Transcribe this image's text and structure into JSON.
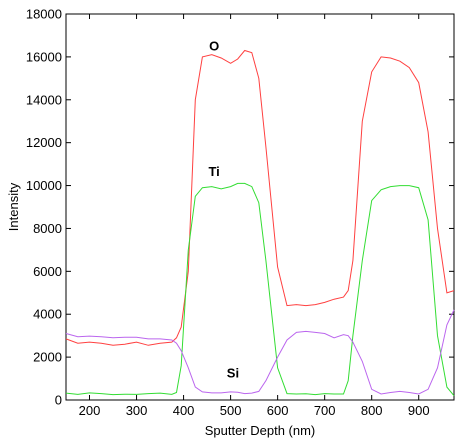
{
  "chart_data": {
    "type": "line",
    "title": "",
    "xlabel": "Sputter Depth (nm)",
    "ylabel": "Intensity",
    "xlim": [
      150,
      975
    ],
    "ylim": [
      0,
      18000
    ],
    "xticks": [
      200,
      300,
      400,
      500,
      600,
      700,
      800,
      900
    ],
    "yticks": [
      0,
      2000,
      4000,
      6000,
      8000,
      10000,
      12000,
      14000,
      16000,
      18000
    ],
    "grid": false,
    "legend": "none",
    "series": [
      {
        "name": "O",
        "color": "#ff4040",
        "label_at": [
          465,
          16300
        ],
        "x": [
          150,
          175,
          200,
          225,
          250,
          275,
          300,
          325,
          350,
          375,
          385,
          395,
          410,
          425,
          440,
          460,
          480,
          500,
          515,
          530,
          545,
          560,
          575,
          600,
          620,
          640,
          660,
          680,
          700,
          720,
          740,
          750,
          760,
          780,
          800,
          820,
          840,
          860,
          880,
          900,
          920,
          940,
          960,
          975
        ],
        "y": [
          2850,
          2650,
          2700,
          2650,
          2550,
          2600,
          2700,
          2550,
          2650,
          2700,
          2900,
          3400,
          6000,
          14000,
          16000,
          16100,
          15950,
          15700,
          15900,
          16300,
          16200,
          15000,
          11800,
          6200,
          4400,
          4450,
          4400,
          4450,
          4550,
          4700,
          4800,
          5100,
          6500,
          13000,
          15300,
          16000,
          15950,
          15800,
          15500,
          14800,
          12500,
          8000,
          5000,
          5100
        ]
      },
      {
        "name": "Ti",
        "color": "#33dd33",
        "label_at": [
          465,
          10450
        ],
        "x": [
          150,
          175,
          200,
          225,
          250,
          275,
          300,
          325,
          350,
          375,
          385,
          395,
          410,
          425,
          440,
          460,
          480,
          500,
          515,
          530,
          545,
          560,
          575,
          600,
          620,
          640,
          660,
          680,
          700,
          720,
          740,
          750,
          760,
          780,
          800,
          820,
          840,
          860,
          880,
          900,
          920,
          940,
          960,
          975
        ],
        "y": [
          320,
          260,
          330,
          300,
          250,
          270,
          260,
          300,
          320,
          260,
          350,
          1600,
          7000,
          9500,
          9900,
          9950,
          9850,
          9950,
          10100,
          10100,
          9950,
          9200,
          6500,
          1500,
          300,
          280,
          290,
          250,
          300,
          280,
          280,
          900,
          3000,
          6500,
          9300,
          9800,
          9950,
          10000,
          10000,
          9900,
          8400,
          3000,
          600,
          200
        ]
      },
      {
        "name": "Si",
        "color": "#bb66ee",
        "label_at": [
          505,
          1050
        ],
        "x": [
          150,
          175,
          200,
          225,
          250,
          275,
          300,
          325,
          350,
          375,
          385,
          395,
          410,
          425,
          440,
          460,
          480,
          500,
          515,
          530,
          545,
          560,
          575,
          600,
          620,
          640,
          660,
          680,
          700,
          720,
          740,
          750,
          760,
          780,
          800,
          820,
          840,
          860,
          880,
          900,
          920,
          940,
          960,
          975
        ],
        "y": [
          3100,
          2950,
          2980,
          2950,
          2900,
          2930,
          2930,
          2850,
          2850,
          2800,
          2650,
          2300,
          1500,
          600,
          380,
          330,
          330,
          380,
          360,
          300,
          320,
          400,
          900,
          2000,
          2800,
          3150,
          3200,
          3150,
          3100,
          2900,
          3050,
          3000,
          2700,
          1800,
          500,
          280,
          350,
          400,
          350,
          280,
          500,
          1500,
          3500,
          4200
        ]
      }
    ]
  }
}
